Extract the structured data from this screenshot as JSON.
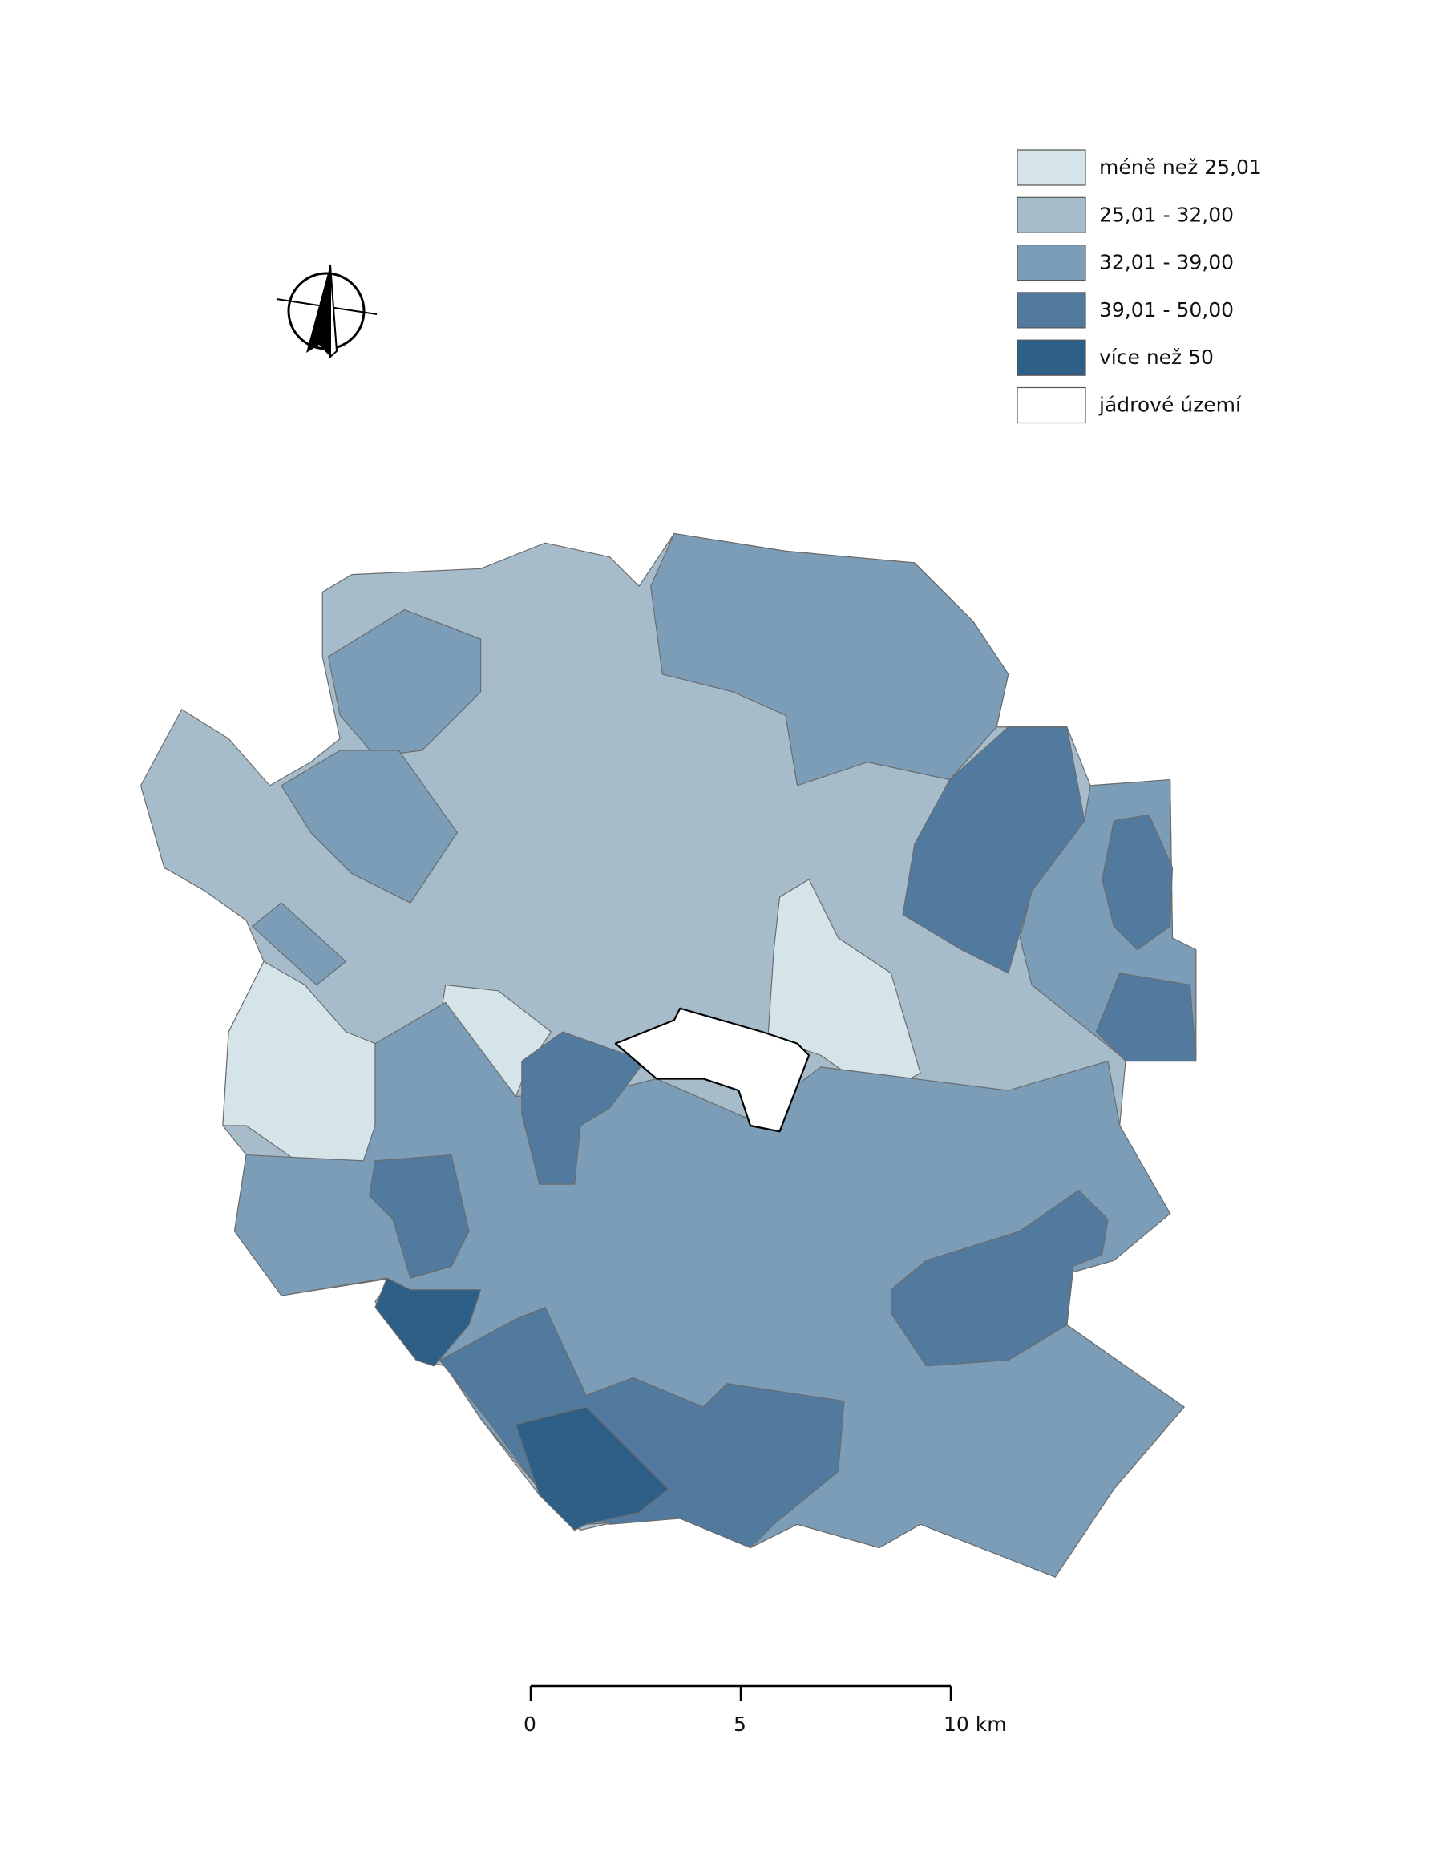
{
  "legend": {
    "items": [
      {
        "label": "méně než 25,01",
        "color": "#d4e4e9"
      },
      {
        "label": "25,01 - 32,00",
        "color": "#a6bccb"
      },
      {
        "label": "32,01 - 39,00",
        "color": "#7b9db7"
      },
      {
        "label": "39,01 - 50,00",
        "color": "#527a9e"
      },
      {
        "label": "více než 50",
        "color": "#2e5f87"
      },
      {
        "label": "jádrové území",
        "color": "#ffffff"
      }
    ]
  },
  "scale_bar": {
    "labels": [
      "0",
      "5",
      "10 km"
    ]
  }
}
